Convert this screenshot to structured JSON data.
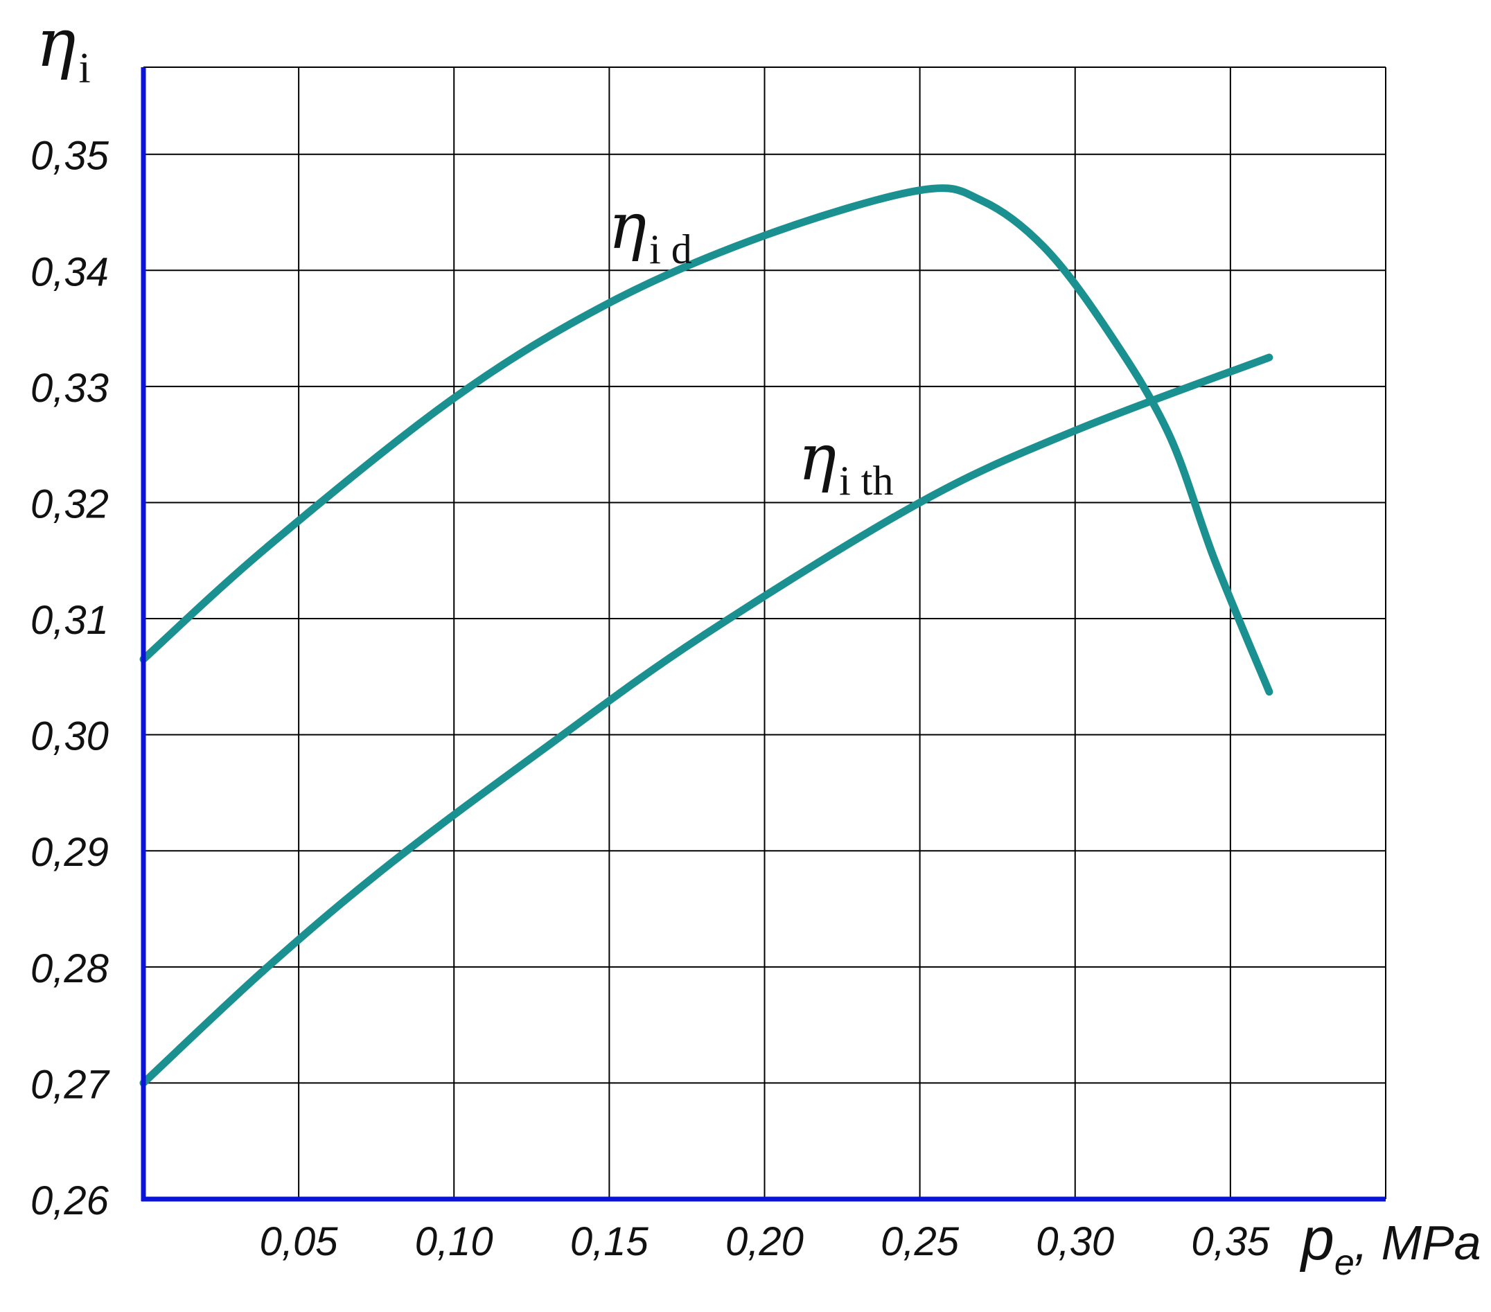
{
  "chart_data": {
    "type": "line",
    "x_ticks": [
      "0,05",
      "0,10",
      "0,15",
      "0,20",
      "0,25",
      "0,30",
      "0,35"
    ],
    "y_ticks": [
      "0,26",
      "0,27",
      "0,28",
      "0,29",
      "0,30",
      "0,31",
      "0,32",
      "0,33",
      "0,34",
      "0,35"
    ],
    "xlim": [
      0,
      0.4
    ],
    "ylim": [
      0.26,
      0.3575
    ],
    "grid": true,
    "ylabel": {
      "symbol": "η",
      "sub": "i"
    },
    "xlabel": {
      "symbol": "p",
      "sub": "e",
      "unit": ", MPa"
    },
    "series": [
      {
        "label": {
          "symbol": "η",
          "sub": "i d"
        },
        "color": "#1a9090",
        "points": [
          [
            0,
            0.3065
          ],
          [
            0.04,
            0.3162
          ],
          [
            0.1,
            0.329
          ],
          [
            0.15,
            0.3372
          ],
          [
            0.2,
            0.343
          ],
          [
            0.25,
            0.3469
          ],
          [
            0.27,
            0.346
          ],
          [
            0.29,
            0.342
          ],
          [
            0.31,
            0.335
          ],
          [
            0.33,
            0.326
          ],
          [
            0.345,
            0.315
          ],
          [
            0.3625,
            0.3037
          ]
        ]
      },
      {
        "label": {
          "symbol": "η",
          "sub": "i th"
        },
        "color": "#1a9090",
        "points": [
          [
            0,
            0.27
          ],
          [
            0.04,
            0.28
          ],
          [
            0.08,
            0.289
          ],
          [
            0.13,
            0.299
          ],
          [
            0.18,
            0.3085
          ],
          [
            0.25,
            0.32
          ],
          [
            0.3,
            0.3262
          ],
          [
            0.3625,
            0.3325
          ]
        ]
      }
    ]
  }
}
